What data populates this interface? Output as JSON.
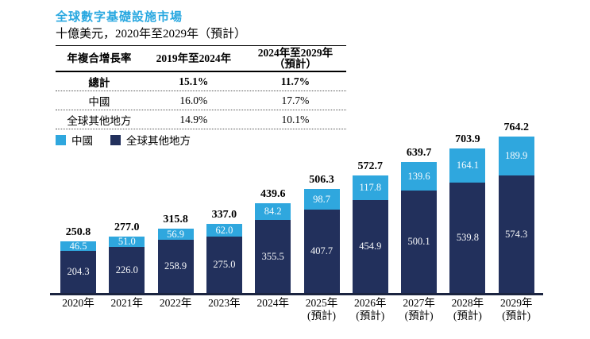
{
  "page": {
    "title": "全球數字基礎設施市場",
    "subtitle": "十億美元，2020年至2029年（預計）"
  },
  "table": {
    "col_headers": {
      "metric": "年複合增長率",
      "period1": "2019年至2024年",
      "period2_line1": "2024年至2029年",
      "period2_line2": "（預計）"
    },
    "rows": [
      {
        "label": "總計",
        "period1": "15.1%",
        "period2": "11.7%",
        "bold": true
      },
      {
        "label": "中國",
        "period1": "16.0%",
        "period2": "17.7%",
        "bold": false
      },
      {
        "label": "全球其他地方",
        "period1": "14.9%",
        "period2": "10.1%",
        "bold": false
      }
    ]
  },
  "legend": {
    "items": [
      {
        "label": "中國",
        "color": "#2FA7DE"
      },
      {
        "label": "全球其他地方",
        "color": "#22305C"
      }
    ]
  },
  "chart_data": {
    "type": "bar",
    "stacked": true,
    "title": "全球數字基礎設施市場",
    "ylabel": "十億美元",
    "ylim": [
      0,
      800
    ],
    "grid": false,
    "legend_position": "top-left",
    "categories": [
      {
        "label": "2020年",
        "sublabel": ""
      },
      {
        "label": "2021年",
        "sublabel": ""
      },
      {
        "label": "2022年",
        "sublabel": ""
      },
      {
        "label": "2023年",
        "sublabel": ""
      },
      {
        "label": "2024年",
        "sublabel": ""
      },
      {
        "label": "2025年",
        "sublabel": "(預計)"
      },
      {
        "label": "2026年",
        "sublabel": "(預計)"
      },
      {
        "label": "2027年",
        "sublabel": "(預計)"
      },
      {
        "label": "2028年",
        "sublabel": "(預計)"
      },
      {
        "label": "2029年",
        "sublabel": "(預計)"
      }
    ],
    "series": [
      {
        "name": "中國",
        "color": "#2FA7DE",
        "values": [
          "46.5",
          "51.0",
          "56.9",
          "62.0",
          "84.2",
          "98.7",
          "117.8",
          "139.6",
          "164.1",
          "189.9"
        ]
      },
      {
        "name": "全球其他地方",
        "color": "#22305C",
        "values": [
          "204.3",
          "226.0",
          "258.9",
          "275.0",
          "355.5",
          "407.7",
          "454.9",
          "500.1",
          "539.8",
          "574.3"
        ]
      }
    ],
    "totals": [
      "250.8",
      "277.0",
      "315.8",
      "337.0",
      "439.6",
      "506.3",
      "572.7",
      "639.7",
      "703.9",
      "764.2"
    ]
  },
  "colors": {
    "title_accent": "#29A8E0",
    "china_blue": "#2FA7DE",
    "rest_navy": "#22305C",
    "axis": "#1B2440"
  }
}
